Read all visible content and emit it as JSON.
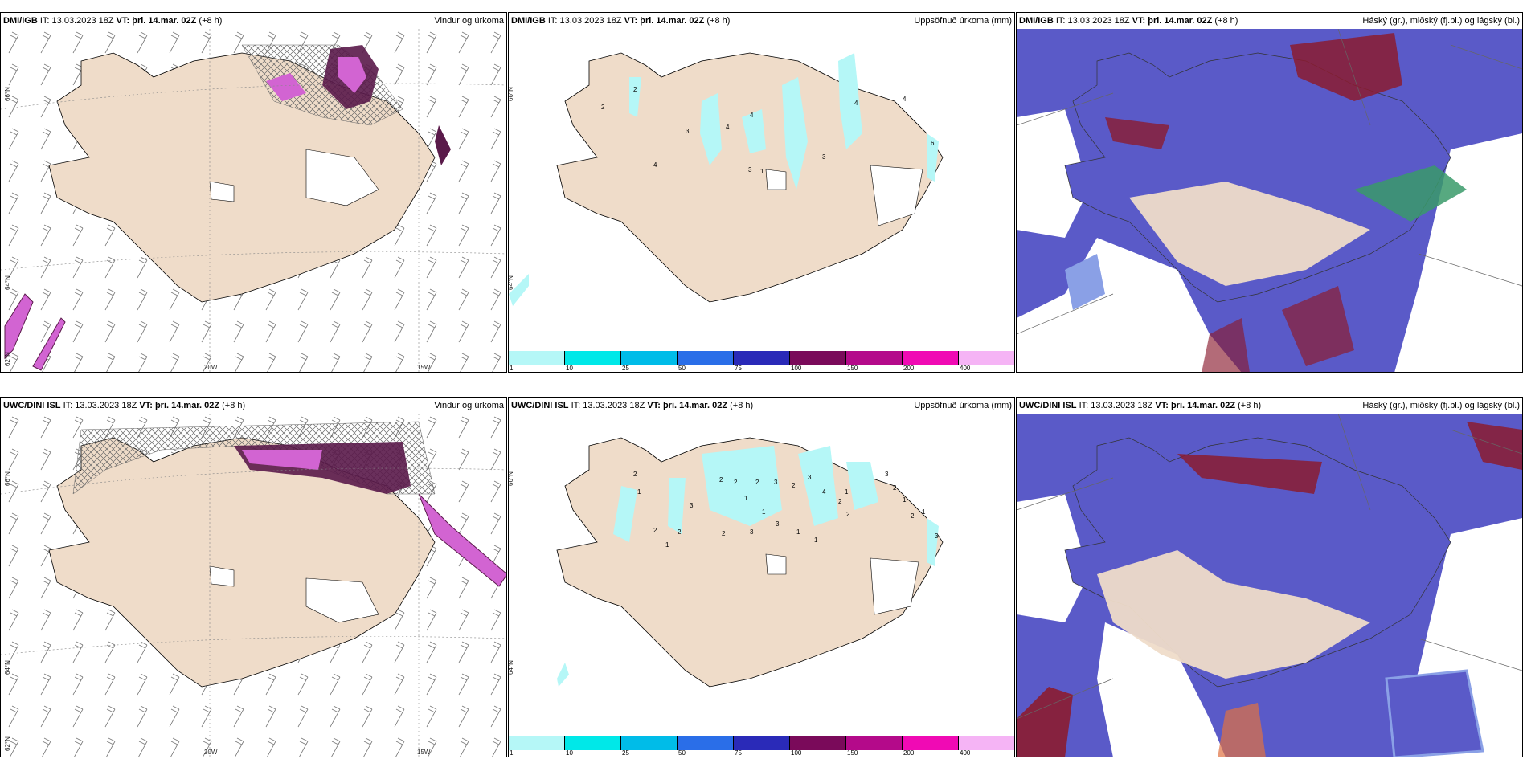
{
  "colors": {
    "land": "#efdcc9",
    "precip_pink": "#d264d2",
    "precip_dark": "#5a1a4a",
    "accum_cyan": "#b5f7f7",
    "cloud_high": "#5a5ac8",
    "cloud_mid": "#8aa0e6",
    "cloud_low": "#8b1c30",
    "cloud_green": "#3a9a6a",
    "grid": "#888888"
  },
  "rows": [
    {
      "model": "DMI/IGB",
      "it_label": "IT:",
      "it": "13.03.2023 18Z",
      "vt_label": "VT:",
      "vt": "þri. 14.mar. 02Z",
      "lead": "(+8 h)",
      "panels": [
        {
          "title": "Vindur og úrkoma",
          "ticks": [
            "66°N",
            "64°N",
            "62°N",
            "20W",
            "15W"
          ]
        },
        {
          "title": "Uppsöfnuð úrkoma (mm)",
          "ticks": [
            "66°N",
            "64°N"
          ],
          "labels": [
            "2",
            "2",
            "3",
            "4",
            "4",
            "4",
            "3",
            "3",
            "4",
            "6",
            "1",
            "3"
          ]
        },
        {
          "title": "Háský (gr.), miðský (fj.bl.) og lágský (bl.)"
        }
      ]
    },
    {
      "model": "UWC/DINI ISL",
      "it_label": "IT:",
      "it": "13.03.2023 18Z",
      "vt_label": "VT:",
      "vt": "þri. 14.mar. 02Z",
      "lead": "(+8 h)",
      "panels": [
        {
          "title": "Vindur og úrkoma",
          "ticks": [
            "66°N",
            "64°N",
            "62°N",
            "20W",
            "15W"
          ]
        },
        {
          "title": "Uppsöfnuð úrkoma (mm)",
          "ticks": [
            "66°N",
            "64°N"
          ],
          "labels": [
            "2",
            "1",
            "3",
            "2",
            "2",
            "2",
            "1",
            "1",
            "3",
            "2",
            "3",
            "4",
            "2",
            "2",
            "2",
            "2",
            "1",
            "2",
            "3",
            "3",
            "1",
            "1",
            "1",
            "3",
            "2",
            "1",
            "1",
            "3",
            "2"
          ]
        },
        {
          "title": "Háský (gr.), miðský (fj.bl.) og lágský (bl.)"
        }
      ]
    }
  ],
  "colorbar": {
    "labels": [
      "1",
      "10",
      "25",
      "50",
      "75",
      "100",
      "150",
      "200",
      "400"
    ],
    "colors": [
      "#b5f7f7",
      "#00e8e8",
      "#00bce8",
      "#2a6ee8",
      "#2a2ab8",
      "#7a0a5a",
      "#b40a8a",
      "#f00ab4",
      "#f5b4f5"
    ]
  }
}
